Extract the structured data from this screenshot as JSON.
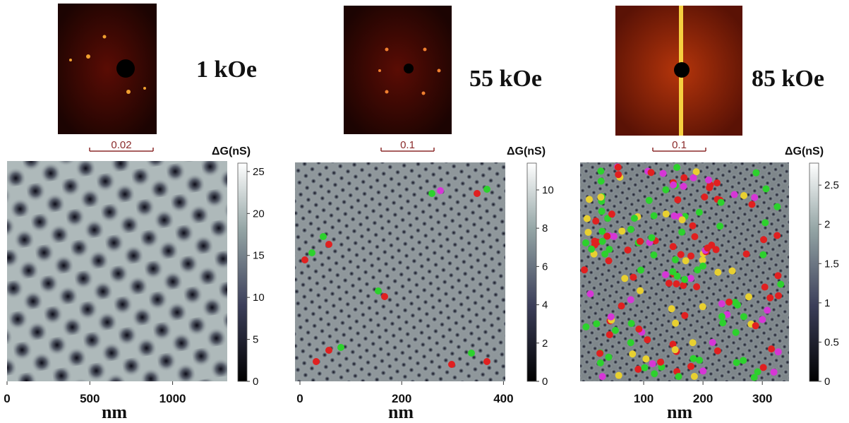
{
  "panels": [
    {
      "field": "1 kOe",
      "scale_bar": "0.02",
      "colorbar": {
        "label": "ΔG(nS)",
        "lim": [
          0,
          26
        ],
        "ticks": [
          0,
          5,
          10,
          15,
          20,
          25
        ]
      },
      "x_axis": {
        "label": "nm",
        "lim": [
          0,
          1330
        ],
        "ticks": [
          0,
          500,
          1000
        ]
      }
    },
    {
      "field": "55 kOe",
      "scale_bar": "0.1",
      "colorbar": {
        "label": "ΔG(nS)",
        "lim": [
          0,
          11.4
        ],
        "ticks": [
          0,
          2,
          4,
          6,
          8,
          10
        ]
      },
      "x_axis": {
        "label": "nm",
        "lim": [
          0,
          405
        ],
        "ticks": [
          0,
          200,
          400
        ]
      }
    },
    {
      "field": "85 kOe",
      "scale_bar": "0.1",
      "colorbar": {
        "label": "ΔG(nS)",
        "lim": [
          0,
          2.78
        ],
        "ticks": [
          0,
          0.5,
          1,
          1.5,
          2,
          2.5
        ]
      },
      "x_axis": {
        "label": "nm",
        "lim": [
          0,
          345
        ],
        "ticks": [
          100,
          200,
          300
        ]
      }
    }
  ]
}
